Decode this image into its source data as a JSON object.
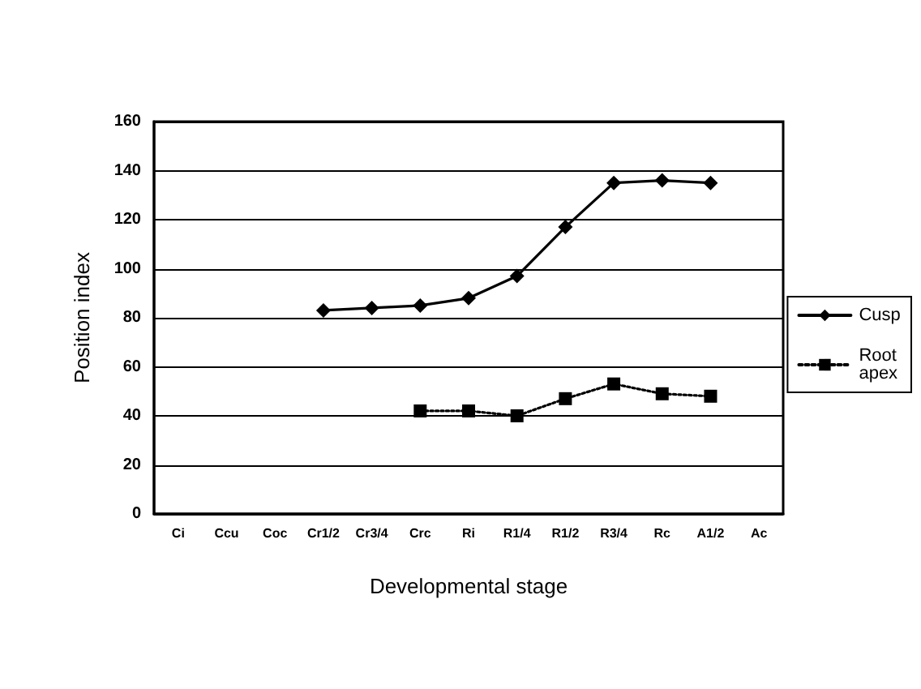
{
  "chart_data": {
    "type": "line",
    "xlabel": "Developmental stage",
    "ylabel": "Position index",
    "categories": [
      "Ci",
      "Ccu",
      "Coc",
      "Cr1/2",
      "Cr3/4",
      "Crc",
      "Ri",
      "R1/4",
      "R1/2",
      "R3/4",
      "Rc",
      "A1/2",
      "Ac"
    ],
    "series": [
      {
        "name": "Cusp",
        "color": "#000000",
        "marker": "diamond",
        "line_style": "solid",
        "values": [
          null,
          null,
          null,
          83,
          84,
          85,
          88,
          97,
          117,
          135,
          136,
          135,
          null
        ]
      },
      {
        "name": "Root apex",
        "color": "#000000",
        "marker": "square",
        "line_style": "dotted",
        "values": [
          null,
          null,
          null,
          null,
          null,
          42,
          42,
          40,
          47,
          53,
          49,
          48,
          null
        ]
      }
    ],
    "ylim": [
      0,
      160
    ],
    "yticks": [
      0,
      20,
      40,
      60,
      80,
      100,
      120,
      140,
      160
    ],
    "grid": "y",
    "legend": "right"
  }
}
